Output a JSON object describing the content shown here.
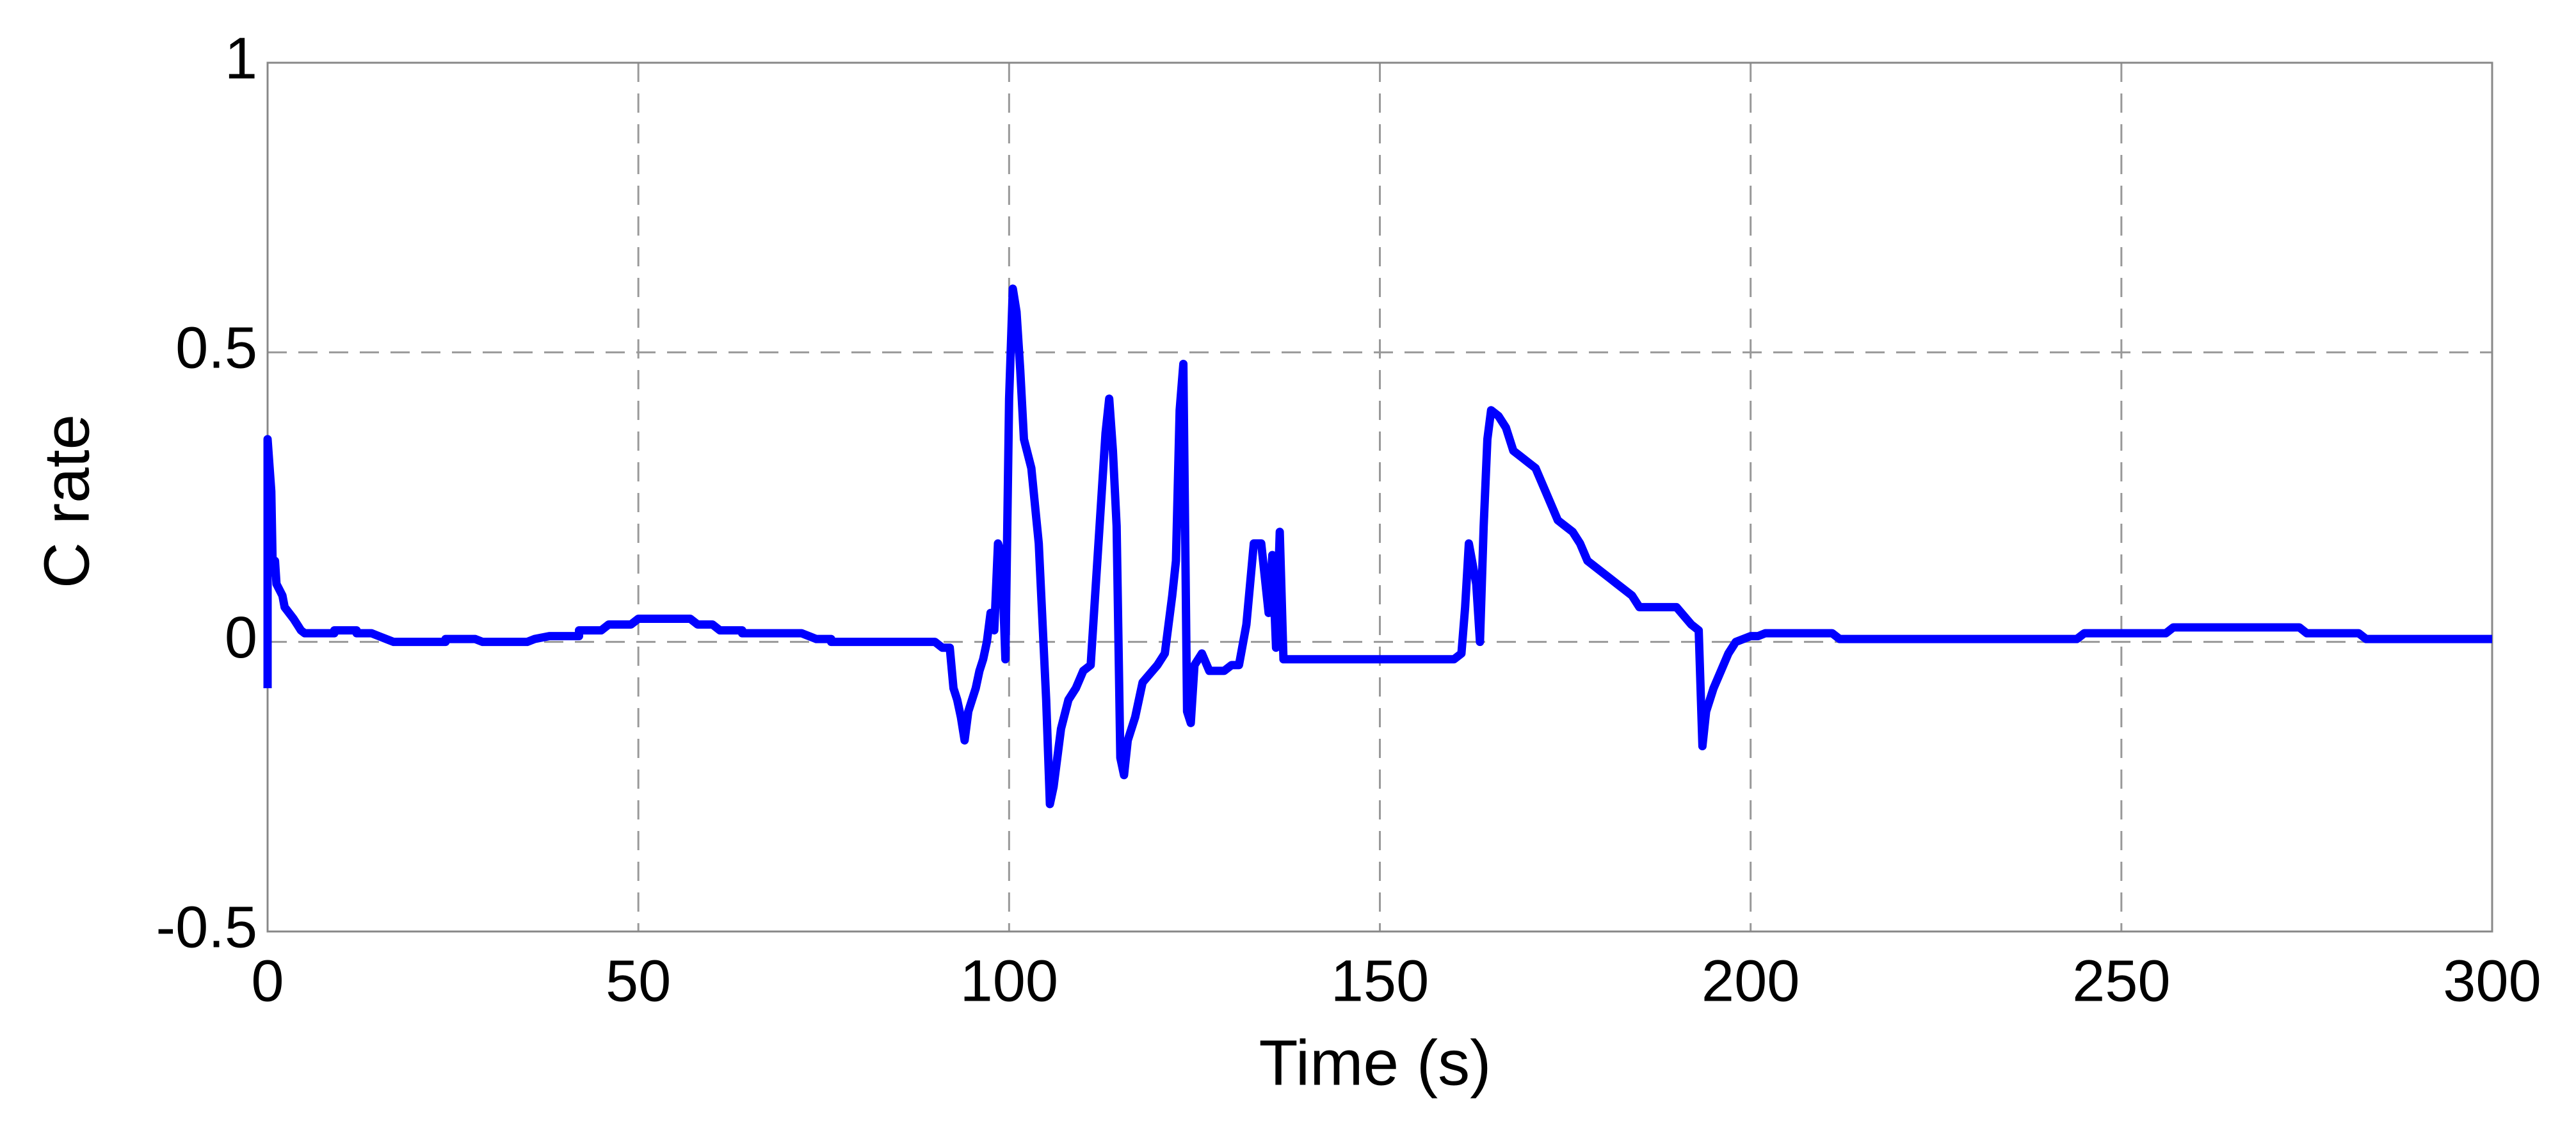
{
  "chart_data": {
    "type": "line",
    "xlabel": "Time (s)",
    "ylabel": "C rate",
    "xlim": [
      0,
      300
    ],
    "ylim": [
      -0.5,
      1
    ],
    "xticks": [
      0,
      50,
      100,
      150,
      200,
      250,
      300
    ],
    "yticks": [
      -0.5,
      0,
      0.5,
      1
    ],
    "grid": true,
    "x": [
      0,
      0,
      0.5,
      0.7,
      1,
      1.2,
      2,
      2.3,
      3.5,
      4,
      4.5,
      5,
      9,
      9,
      12,
      12,
      14,
      15,
      16,
      17,
      24,
      24,
      28,
      29,
      35,
      36,
      38,
      42,
      42,
      45,
      46,
      49,
      50,
      57,
      58,
      60,
      61,
      64,
      64,
      72,
      74,
      76,
      76,
      90,
      91,
      92,
      92.5,
      93,
      93.5,
      94,
      94.5,
      95,
      95.5,
      96,
      96.5,
      97,
      97.5,
      98,
      98.5,
      99,
      99.5,
      100,
      100.5,
      101,
      101.5,
      102,
      103,
      104,
      105,
      105.5,
      106,
      107,
      108,
      109,
      110,
      111,
      112,
      113,
      113.5,
      114,
      114.5,
      115,
      115.5,
      116,
      117,
      118,
      120,
      121,
      122,
      122.5,
      123,
      123.5,
      124,
      124.5,
      125,
      126,
      127,
      129,
      130,
      131,
      132,
      133,
      134,
      135,
      135.5,
      136,
      136.5,
      137,
      160,
      161,
      161.5,
      162,
      163,
      163.5,
      164,
      164.5,
      165,
      166,
      167,
      168,
      169,
      170,
      171,
      172,
      173,
      174,
      175,
      176,
      177,
      178,
      180,
      181,
      182,
      184,
      185,
      190,
      192,
      193,
      193.5,
      194,
      195,
      196,
      197,
      198,
      199,
      200,
      201,
      202,
      211,
      212,
      244,
      245,
      256,
      257,
      274,
      275,
      282,
      283,
      300
    ],
    "series": [
      {
        "name": "C rate",
        "color": "#0000ff",
        "values": [
          -0.08,
          0.35,
          0.26,
          0.12,
          0.14,
          0.1,
          0.08,
          0.06,
          0.04,
          0.03,
          0.02,
          0.015,
          0.015,
          0.02,
          0.02,
          0.015,
          0.015,
          0.01,
          0.005,
          0,
          0,
          0.005,
          0.005,
          0,
          0,
          0.005,
          0.01,
          0.01,
          0.02,
          0.02,
          0.03,
          0.03,
          0.04,
          0.04,
          0.03,
          0.03,
          0.02,
          0.02,
          0.015,
          0.015,
          0.005,
          0.005,
          0,
          0,
          -0.01,
          -0.01,
          -0.08,
          -0.1,
          -0.13,
          -0.17,
          -0.12,
          -0.1,
          -0.08,
          -0.05,
          -0.03,
          0,
          0.05,
          0.02,
          0.17,
          0.15,
          -0.03,
          0.42,
          0.61,
          0.57,
          0.47,
          0.35,
          0.3,
          0.17,
          -0.1,
          -0.28,
          -0.25,
          -0.15,
          -0.1,
          -0.08,
          -0.05,
          -0.04,
          0.16,
          0.36,
          0.42,
          0.33,
          0.2,
          -0.2,
          -0.23,
          -0.17,
          -0.13,
          -0.07,
          -0.04,
          -0.02,
          0.08,
          0.14,
          0.4,
          0.48,
          -0.12,
          -0.14,
          -0.04,
          -0.02,
          -0.05,
          -0.05,
          -0.04,
          -0.04,
          0.03,
          0.17,
          0.17,
          0.05,
          0.15,
          -0.01,
          0.19,
          -0.03,
          -0.03,
          -0.02,
          0.06,
          0.17,
          0.1,
          0,
          0.2,
          0.35,
          0.4,
          0.39,
          0.37,
          0.33,
          0.32,
          0.31,
          0.3,
          0.27,
          0.24,
          0.21,
          0.2,
          0.19,
          0.17,
          0.14,
          0.12,
          0.11,
          0.1,
          0.08,
          0.06,
          0.06,
          0.03,
          0.02,
          -0.18,
          -0.12,
          -0.08,
          -0.05,
          -0.02,
          0,
          0.005,
          0.01,
          0.01,
          0.015,
          0.015,
          0.005,
          0.005,
          0.015,
          0.015,
          0.025,
          0.025,
          0.015,
          0.015,
          0.005,
          0.005
        ]
      }
    ]
  }
}
